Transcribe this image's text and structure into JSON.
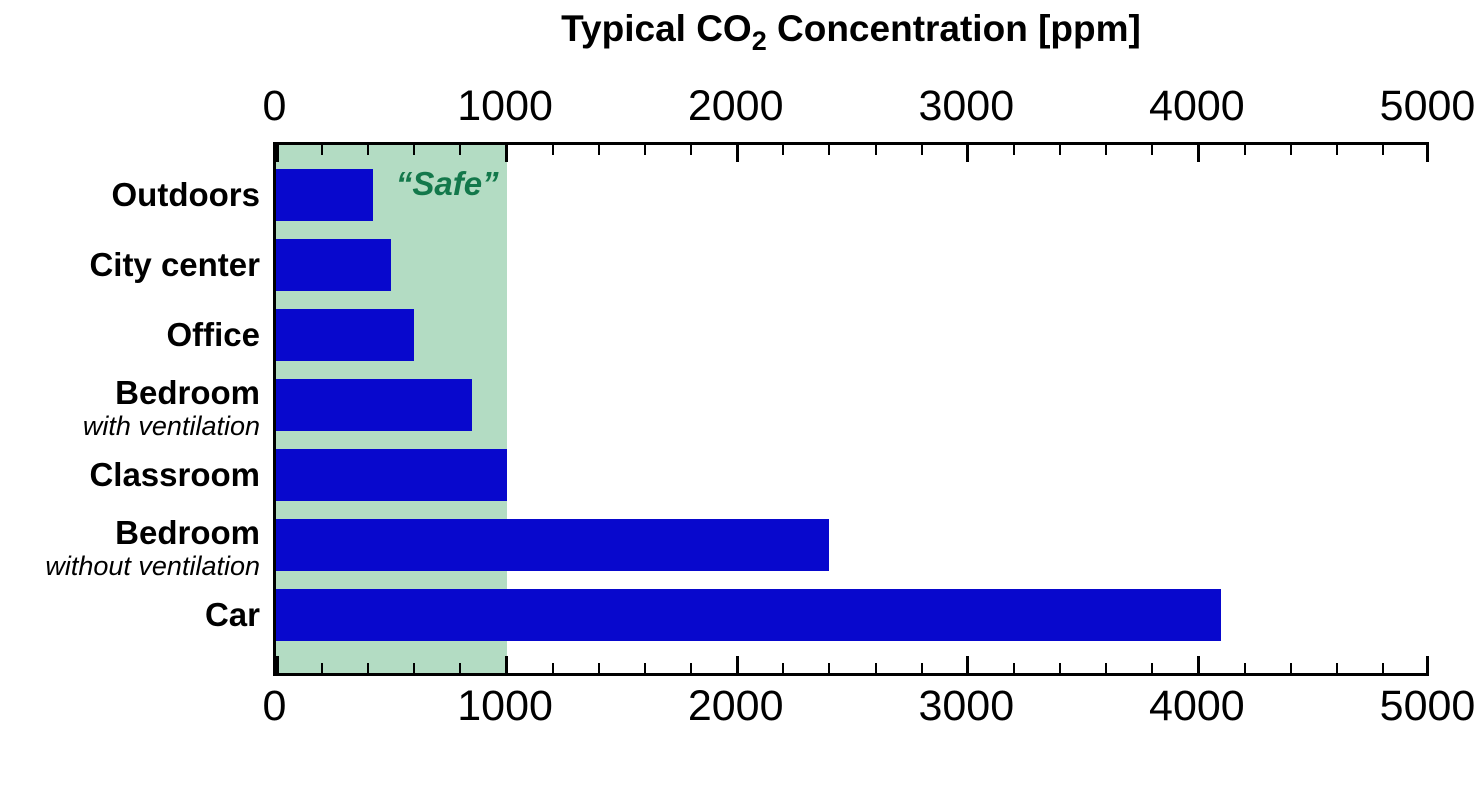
{
  "ui": {
    "title": {
      "prefix": "Typical CO",
      "subscript": "2",
      "suffix": " Concentration [ppm]"
    },
    "safe_label": "“Safe”",
    "top_axis_tick_labels": [
      "0",
      "1000",
      "2000",
      "3000",
      "4000",
      "5000"
    ],
    "bottom_axis_tick_labels": [
      "0",
      "1000",
      "2000",
      "3000",
      "4000",
      "5000"
    ]
  },
  "colors": {
    "bar": "#0808cd",
    "safe_region": "#b3dcc3",
    "safe_text": "#13784b",
    "axis": "#000000",
    "text": "#000000"
  },
  "chart_data": {
    "type": "bar",
    "orientation": "horizontal",
    "title": "Typical CO2 Concentration [ppm]",
    "categories": [
      {
        "label": "Outdoors",
        "sublabel": null
      },
      {
        "label": "City center",
        "sublabel": null
      },
      {
        "label": "Office",
        "sublabel": null
      },
      {
        "label": "Bedroom",
        "sublabel": "with ventilation"
      },
      {
        "label": "Classroom",
        "sublabel": null
      },
      {
        "label": "Bedroom",
        "sublabel": "without ventilation"
      },
      {
        "label": "Car",
        "sublabel": null
      }
    ],
    "values": [
      420,
      500,
      600,
      850,
      1000,
      2400,
      4100
    ],
    "unit": "ppm",
    "xlim": [
      0,
      5000
    ],
    "x_major_tick_step": 1000,
    "x_minor_tick_step": 200,
    "tick_sides": [
      "top",
      "bottom"
    ],
    "safe_region": {
      "from": 0,
      "to": 1000,
      "label": "“Safe”"
    },
    "grid": false,
    "legend": false
  }
}
